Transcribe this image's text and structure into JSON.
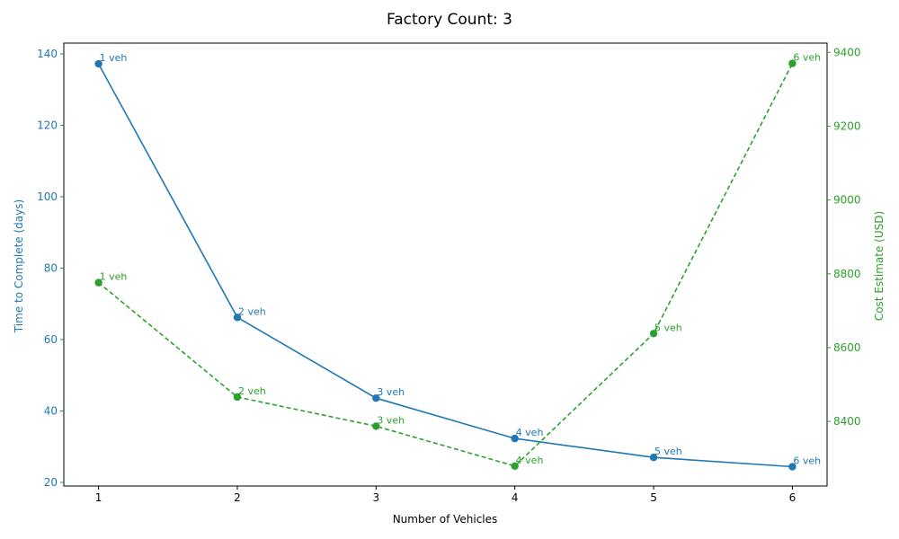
{
  "chart_data": {
    "type": "line",
    "title": "Factory Count: 3",
    "xlabel": "Number of Vehicles",
    "ylabel_left": "Time to Complete (days)",
    "ylabel_right": "Cost Estimate (USD)",
    "x": [
      1,
      2,
      3,
      4,
      5,
      6
    ],
    "xlim": [
      0.75,
      6.25
    ],
    "x_ticks": [
      1,
      2,
      3,
      4,
      5,
      6
    ],
    "left_axis": {
      "ylim": [
        19,
        143
      ],
      "ticks": [
        20,
        40,
        60,
        80,
        100,
        120,
        140
      ],
      "color": "#1f77b4"
    },
    "right_axis": {
      "ylim": [
        8225,
        9425
      ],
      "ticks": [
        8400,
        8600,
        8800,
        9000,
        9200,
        9400
      ],
      "color": "#2ca02c"
    },
    "grid": false,
    "series": [
      {
        "axis": "left",
        "color": "#1f77b4",
        "line_style": "solid",
        "marker": "circle",
        "values": [
          137.2,
          66.2,
          43.6,
          32.3,
          27.0,
          24.4
        ],
        "labels": [
          "1 veh",
          "2 veh",
          "3 veh",
          "4 veh",
          "5 veh",
          "6 veh"
        ]
      },
      {
        "axis": "right",
        "color": "#2ca02c",
        "line_style": "dashed",
        "marker": "circle",
        "values": [
          8776,
          8466,
          8387,
          8279,
          8638,
          9370
        ],
        "labels": [
          "1 veh",
          "2 veh",
          "3 veh",
          "4 veh",
          "5 veh",
          "6 veh"
        ]
      }
    ]
  }
}
